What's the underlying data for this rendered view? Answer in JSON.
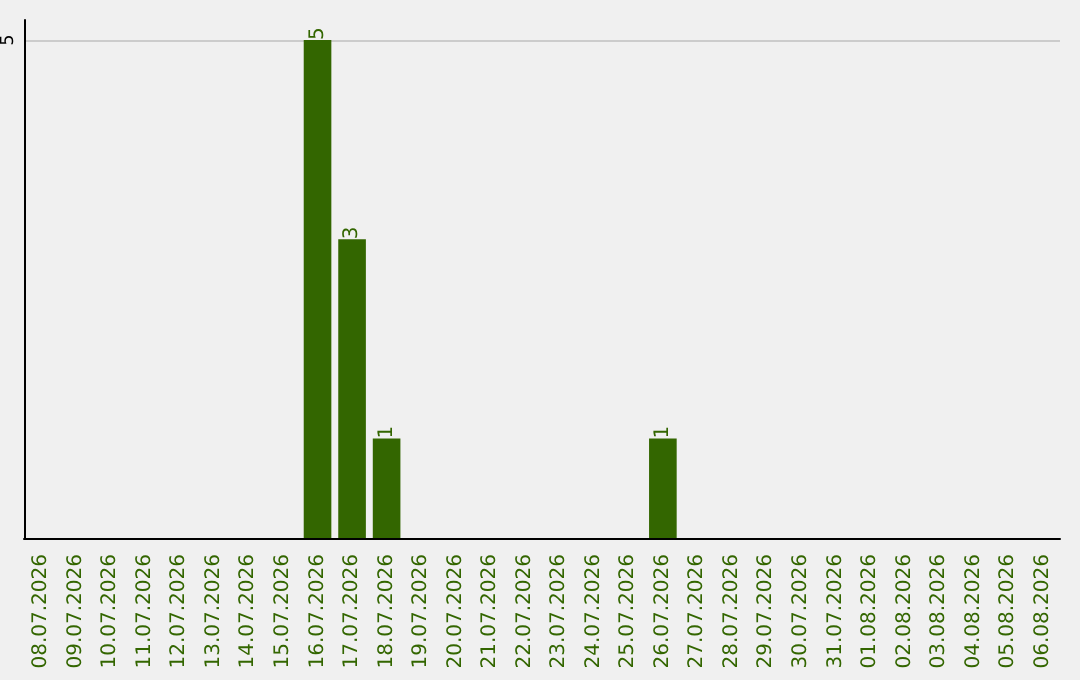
{
  "chart_data": {
    "type": "bar",
    "categories": [
      "08.07.2026",
      "09.07.2026",
      "10.07.2026",
      "11.07.2026",
      "12.07.2026",
      "13.07.2026",
      "14.07.2026",
      "15.07.2026",
      "16.07.2026",
      "17.07.2026",
      "18.07.2026",
      "19.07.2026",
      "20.07.2026",
      "21.07.2026",
      "22.07.2026",
      "23.07.2026",
      "24.07.2026",
      "25.07.2026",
      "26.07.2026",
      "27.07.2026",
      "28.07.2026",
      "29.07.2026",
      "30.07.2026",
      "31.07.2026",
      "01.08.2026",
      "02.08.2026",
      "03.08.2026",
      "04.08.2026",
      "05.08.2026",
      "06.08.2026"
    ],
    "values": [
      0,
      0,
      0,
      0,
      0,
      0,
      0,
      0,
      5,
      3,
      1,
      0,
      0,
      0,
      0,
      0,
      0,
      0,
      1,
      0,
      0,
      0,
      0,
      0,
      0,
      0,
      0,
      0,
      0,
      0
    ],
    "value_labels": [
      null,
      null,
      null,
      null,
      null,
      null,
      null,
      null,
      "5",
      "3",
      "1",
      null,
      null,
      null,
      null,
      null,
      null,
      null,
      "1",
      null,
      null,
      null,
      null,
      null,
      null,
      null,
      null,
      null,
      null,
      null
    ],
    "color": "#336600",
    "ylim": [
      0,
      5.2
    ],
    "yticks": [
      5
    ],
    "grid": "y"
  }
}
